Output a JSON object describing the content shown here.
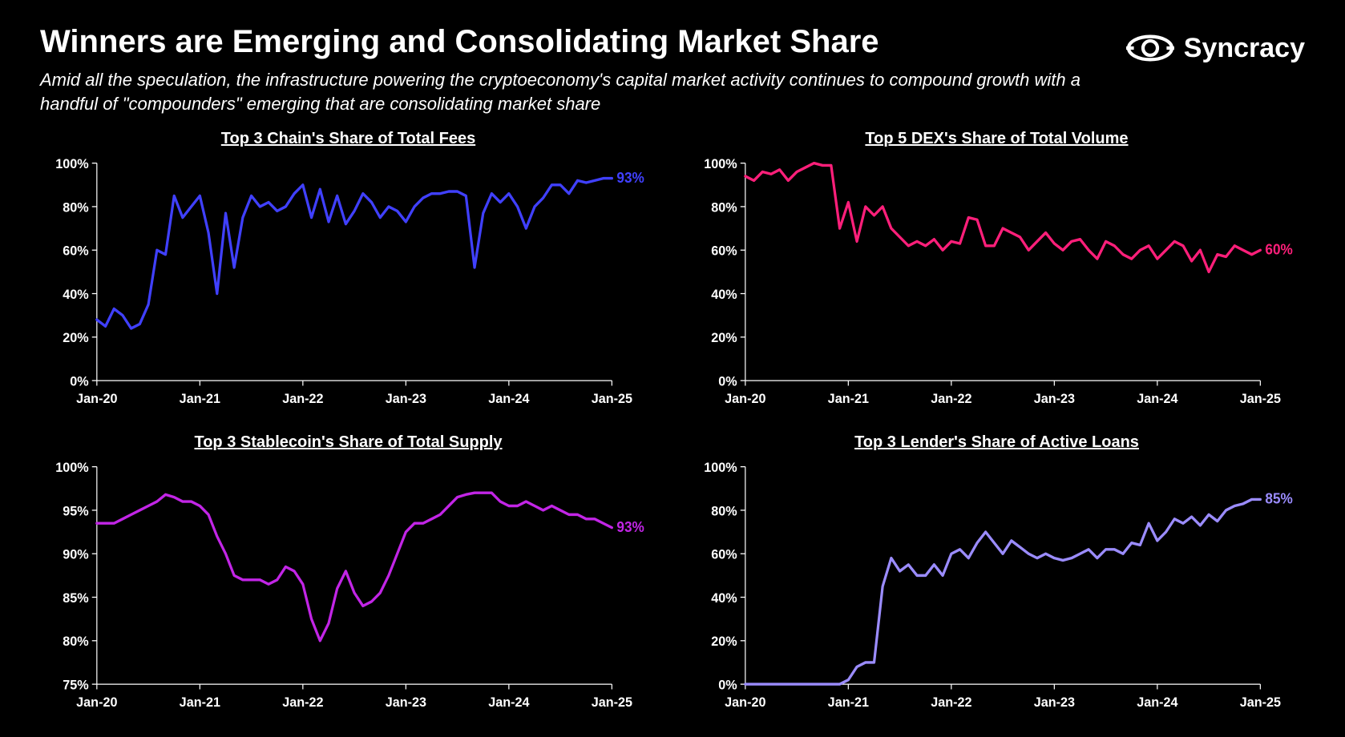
{
  "header": {
    "title": "Winners are Emerging and Consolidating Market Share",
    "subtitle": "Amid all the speculation, the infrastructure powering the cryptoeconomy's capital market activity continues to compound growth with a handful of \"compounders\" emerging that are consolidating market share",
    "logo": "Syncracy"
  },
  "x_axis": {
    "labels": [
      "Jan-20",
      "Jan-21",
      "Jan-22",
      "Jan-23",
      "Jan-24",
      "Jan-25"
    ],
    "domain": [
      0,
      60
    ]
  },
  "charts": [
    {
      "title": "Top 3 Chain's Share of Total Fees",
      "type": "line",
      "line_color": "#4040ff",
      "end_label": "93%",
      "end_label_color": "#4040ff",
      "ylim": [
        0,
        100
      ],
      "ytick_step": 20,
      "y_format": "%",
      "values": [
        28,
        25,
        33,
        30,
        24,
        26,
        35,
        60,
        58,
        85,
        75,
        80,
        85,
        68,
        40,
        77,
        52,
        75,
        85,
        80,
        82,
        78,
        80,
        86,
        90,
        75,
        88,
        73,
        85,
        72,
        78,
        86,
        82,
        75,
        80,
        78,
        73,
        80,
        84,
        86,
        86,
        87,
        87,
        85,
        52,
        77,
        86,
        82,
        86,
        80,
        70,
        80,
        84,
        90,
        90,
        86,
        92,
        91,
        92,
        93,
        93
      ]
    },
    {
      "title": "Top 5 DEX's Share of Total Volume",
      "type": "line",
      "line_color": "#ff1f7a",
      "end_label": "60%",
      "end_label_color": "#ff1f7a",
      "ylim": [
        0,
        100
      ],
      "ytick_step": 20,
      "y_format": "%",
      "values": [
        94,
        92,
        96,
        95,
        97,
        92,
        96,
        98,
        100,
        99,
        99,
        70,
        82,
        64,
        80,
        76,
        80,
        70,
        66,
        62,
        64,
        62,
        65,
        60,
        64,
        63,
        75,
        74,
        62,
        62,
        70,
        68,
        66,
        60,
        64,
        68,
        63,
        60,
        64,
        65,
        60,
        56,
        64,
        62,
        58,
        56,
        60,
        62,
        56,
        60,
        64,
        62,
        55,
        60,
        50,
        58,
        57,
        62,
        60,
        58,
        60
      ]
    },
    {
      "title": "Top 3 Stablecoin's Share of Total Supply",
      "type": "line",
      "line_color": "#c225e6",
      "end_label": "93%",
      "end_label_color": "#c225e6",
      "ylim": [
        75,
        100
      ],
      "ytick_step": 5,
      "y_format": "%",
      "values": [
        93.5,
        93.5,
        93.5,
        94,
        94.5,
        95,
        95.5,
        96,
        96.8,
        96.5,
        96,
        96,
        95.5,
        94.5,
        92,
        90,
        87.5,
        87,
        87,
        87,
        86.5,
        87,
        88.5,
        88,
        86.5,
        82.5,
        80,
        82,
        86,
        88,
        85.5,
        84,
        84.5,
        85.5,
        87.5,
        90,
        92.5,
        93.5,
        93.5,
        94,
        94.5,
        95.5,
        96.5,
        96.8,
        97,
        97,
        97,
        96,
        95.5,
        95.5,
        96,
        95.5,
        95,
        95.5,
        95,
        94.5,
        94.5,
        94,
        94,
        93.5,
        93
      ]
    },
    {
      "title": "Top 3 Lender's Share of Active Loans",
      "type": "line",
      "line_color": "#9b8cff",
      "end_label": "85%",
      "end_label_color": "#9b8cff",
      "ylim": [
        0,
        100
      ],
      "ytick_step": 20,
      "y_format": "%",
      "values": [
        0,
        0,
        0,
        0,
        0,
        0,
        0,
        0,
        0,
        0,
        0,
        0,
        2,
        8,
        10,
        10,
        45,
        58,
        52,
        55,
        50,
        50,
        55,
        50,
        60,
        62,
        58,
        65,
        70,
        65,
        60,
        66,
        63,
        60,
        58,
        60,
        58,
        57,
        58,
        60,
        62,
        58,
        62,
        62,
        60,
        65,
        64,
        74,
        66,
        70,
        76,
        74,
        77,
        73,
        78,
        75,
        80,
        82,
        83,
        85,
        85
      ]
    }
  ],
  "style": {
    "background_color": "#000000",
    "text_color": "#ffffff",
    "axis_color": "#ffffff",
    "line_width": 3.2,
    "title_fontsize": 40,
    "subtitle_fontsize": 22,
    "chart_title_fontsize": 20,
    "tick_fontsize": 16
  }
}
